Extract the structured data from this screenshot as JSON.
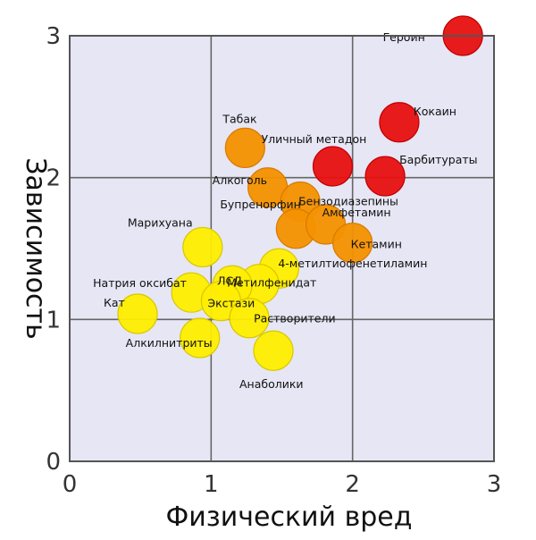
{
  "chart_data": {
    "type": "scatter",
    "title": "",
    "xlabel": "Физический вред",
    "ylabel": "Зависимость",
    "xlim": [
      0,
      3
    ],
    "ylim": [
      0,
      3
    ],
    "xticks": [
      "0",
      "1",
      "2",
      "3"
    ],
    "yticks": [
      "0",
      "1",
      "2",
      "3"
    ],
    "grid": true,
    "plot_background": "#e6e6f5",
    "colors": {
      "high": "#e81010",
      "medium": "#f59200",
      "low": "#ffee00"
    },
    "points": [
      {
        "label": "Героин",
        "x": 2.78,
        "y": 3.0,
        "group": "high"
      },
      {
        "label": "Кокаин",
        "x": 2.33,
        "y": 2.39,
        "group": "high"
      },
      {
        "label": "Барбитураты",
        "x": 2.23,
        "y": 2.01,
        "group": "high"
      },
      {
        "label": "Уличный метадон",
        "x": 1.86,
        "y": 2.08,
        "group": "high"
      },
      {
        "label": "Табак",
        "x": 1.24,
        "y": 2.21,
        "group": "medium"
      },
      {
        "label": "Алкоголь",
        "x": 1.4,
        "y": 1.93,
        "group": "medium"
      },
      {
        "label": "Бензодиазепины",
        "x": 1.63,
        "y": 1.83,
        "group": "medium"
      },
      {
        "label": "Бупренорфин",
        "x": 1.6,
        "y": 1.64,
        "group": "medium"
      },
      {
        "label": "Амфетамин",
        "x": 1.81,
        "y": 1.67,
        "group": "medium"
      },
      {
        "label": "Кетамин",
        "x": 2.0,
        "y": 1.54,
        "group": "medium"
      },
      {
        "label": "4-метилтиофенетиламин",
        "x": 1.48,
        "y": 1.36,
        "group": "low"
      },
      {
        "label": "Метилфенидат",
        "x": 1.34,
        "y": 1.25,
        "group": "low"
      },
      {
        "label": "Марихуана",
        "x": 0.94,
        "y": 1.51,
        "group": "low"
      },
      {
        "label": "ЛСД",
        "x": 1.15,
        "y": 1.24,
        "group": "low"
      },
      {
        "label": "Натрия оксибат",
        "x": 0.86,
        "y": 1.19,
        "group": "low"
      },
      {
        "label": "Экстази",
        "x": 1.07,
        "y": 1.13,
        "group": "low"
      },
      {
        "label": "Кат",
        "x": 0.48,
        "y": 1.04,
        "group": "low"
      },
      {
        "label": "Растворители",
        "x": 1.27,
        "y": 1.01,
        "group": "low"
      },
      {
        "label": "Алкилнитриты",
        "x": 0.92,
        "y": 0.87,
        "group": "low"
      },
      {
        "label": "Анаболики",
        "x": 1.44,
        "y": 0.78,
        "group": "low"
      }
    ]
  }
}
